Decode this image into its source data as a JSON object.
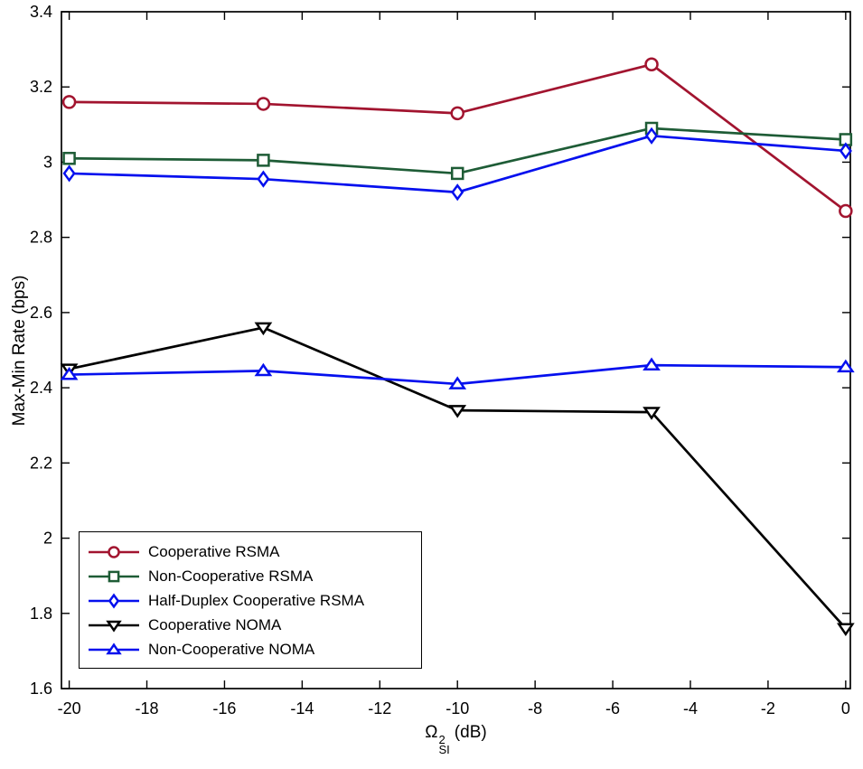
{
  "chart_data": {
    "type": "line",
    "title": "",
    "xlabel": "Ω²_SI (dB)",
    "xlabel_parts": {
      "symbol": "Ω",
      "sup": "2",
      "sub": "SI",
      "unit": "(dB)"
    },
    "ylabel": "Max-Min Rate (bps)",
    "xlim": [
      -20.2,
      0.12
    ],
    "ylim": [
      1.6,
      3.4
    ],
    "x_tick_values": [
      -20,
      -18,
      -16,
      -14,
      -12,
      -10,
      -8,
      -6,
      -4,
      -2,
      0
    ],
    "x_tick_labels": [
      "-20",
      "-18",
      "-16",
      "-14",
      "-12",
      "-10",
      "-8",
      "-6",
      "-4",
      "-2",
      "0"
    ],
    "y_tick_values": [
      1.6,
      1.8,
      2.0,
      2.2,
      2.4,
      2.6,
      2.8,
      3.0,
      3.2,
      3.4
    ],
    "y_tick_labels": [
      "1.6",
      "1.8",
      "2",
      "2.2",
      "2.4",
      "2.6",
      "2.8",
      "3",
      "3.2",
      "3.4"
    ],
    "grid": false,
    "legend_position": "bottom-left",
    "axis_color": "#000000",
    "background_color": "#ffffff",
    "x": [
      -20,
      -15,
      -10,
      -5,
      0
    ],
    "series": [
      {
        "name": "Cooperative RSMA",
        "color": "#a2142f",
        "marker": "circle",
        "values": [
          3.16,
          3.155,
          3.13,
          3.26,
          2.87
        ]
      },
      {
        "name": "Non-Cooperative RSMA",
        "color": "#1e5c36",
        "marker": "square",
        "values": [
          3.01,
          3.005,
          2.97,
          3.09,
          3.06
        ]
      },
      {
        "name": "Half-Duplex Cooperative RSMA",
        "color": "#0510ee",
        "marker": "diamond",
        "values": [
          2.97,
          2.955,
          2.92,
          3.07,
          3.03
        ]
      },
      {
        "name": "Cooperative NOMA",
        "color": "#000000",
        "marker": "triangle-down",
        "values": [
          2.45,
          2.56,
          2.34,
          2.335,
          1.76
        ]
      },
      {
        "name": "Non-Cooperative NOMA",
        "color": "#0510ee",
        "marker": "triangle-up",
        "values": [
          2.435,
          2.445,
          2.41,
          2.46,
          2.455
        ]
      }
    ]
  }
}
